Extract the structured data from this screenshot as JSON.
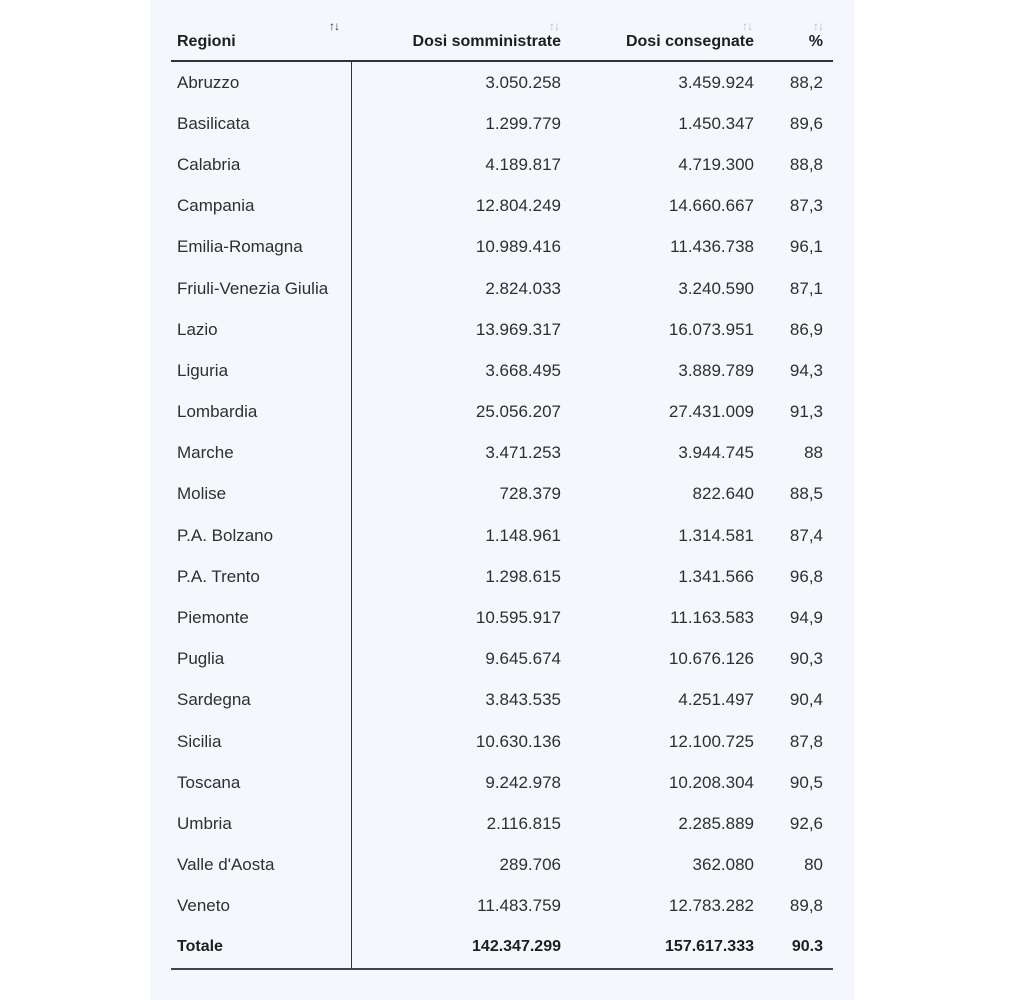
{
  "table": {
    "headers": {
      "region": "Regioni",
      "administered": "Dosi somministrate",
      "delivered": "Dosi consegnate",
      "percent": "%"
    },
    "sort_glyph": "↑↓",
    "rows": [
      {
        "region": "Abruzzo",
        "administered": "3.050.258",
        "delivered": "3.459.924",
        "percent": "88,2"
      },
      {
        "region": "Basilicata",
        "administered": "1.299.779",
        "delivered": "1.450.347",
        "percent": "89,6"
      },
      {
        "region": "Calabria",
        "administered": "4.189.817",
        "delivered": "4.719.300",
        "percent": "88,8"
      },
      {
        "region": "Campania",
        "administered": "12.804.249",
        "delivered": "14.660.667",
        "percent": "87,3"
      },
      {
        "region": "Emilia-Romagna",
        "administered": "10.989.416",
        "delivered": "11.436.738",
        "percent": "96,1"
      },
      {
        "region": "Friuli-Venezia Giulia",
        "administered": "2.824.033",
        "delivered": "3.240.590",
        "percent": "87,1"
      },
      {
        "region": "Lazio",
        "administered": "13.969.317",
        "delivered": "16.073.951",
        "percent": "86,9"
      },
      {
        "region": "Liguria",
        "administered": "3.668.495",
        "delivered": "3.889.789",
        "percent": "94,3"
      },
      {
        "region": "Lombardia",
        "administered": "25.056.207",
        "delivered": "27.431.009",
        "percent": "91,3"
      },
      {
        "region": "Marche",
        "administered": "3.471.253",
        "delivered": "3.944.745",
        "percent": "88"
      },
      {
        "region": "Molise",
        "administered": "728.379",
        "delivered": "822.640",
        "percent": "88,5"
      },
      {
        "region": "P.A. Bolzano",
        "administered": "1.148.961",
        "delivered": "1.314.581",
        "percent": "87,4"
      },
      {
        "region": "P.A. Trento",
        "administered": "1.298.615",
        "delivered": "1.341.566",
        "percent": "96,8"
      },
      {
        "region": "Piemonte",
        "administered": "10.595.917",
        "delivered": "11.163.583",
        "percent": "94,9"
      },
      {
        "region": "Puglia",
        "administered": "9.645.674",
        "delivered": "10.676.126",
        "percent": "90,3"
      },
      {
        "region": "Sardegna",
        "administered": "3.843.535",
        "delivered": "4.251.497",
        "percent": "90,4"
      },
      {
        "region": "Sicilia",
        "administered": "10.630.136",
        "delivered": "12.100.725",
        "percent": "87,8"
      },
      {
        "region": "Toscana",
        "administered": "9.242.978",
        "delivered": "10.208.304",
        "percent": "90,5"
      },
      {
        "region": "Umbria",
        "administered": "2.116.815",
        "delivered": "2.285.889",
        "percent": "92,6"
      },
      {
        "region": "Valle d'Aosta",
        "administered": "289.706",
        "delivered": "362.080",
        "percent": "80"
      },
      {
        "region": "Veneto",
        "administered": "11.483.759",
        "delivered": "12.783.282",
        "percent": "89,8"
      }
    ],
    "total": {
      "region": "Totale",
      "administered": "142.347.299",
      "delivered": "157.617.333",
      "percent": "90.3"
    }
  },
  "colors": {
    "panel_background": "#f4f7fb",
    "active_sort": "#333333",
    "inactive_sort": "#b4bcc6"
  }
}
